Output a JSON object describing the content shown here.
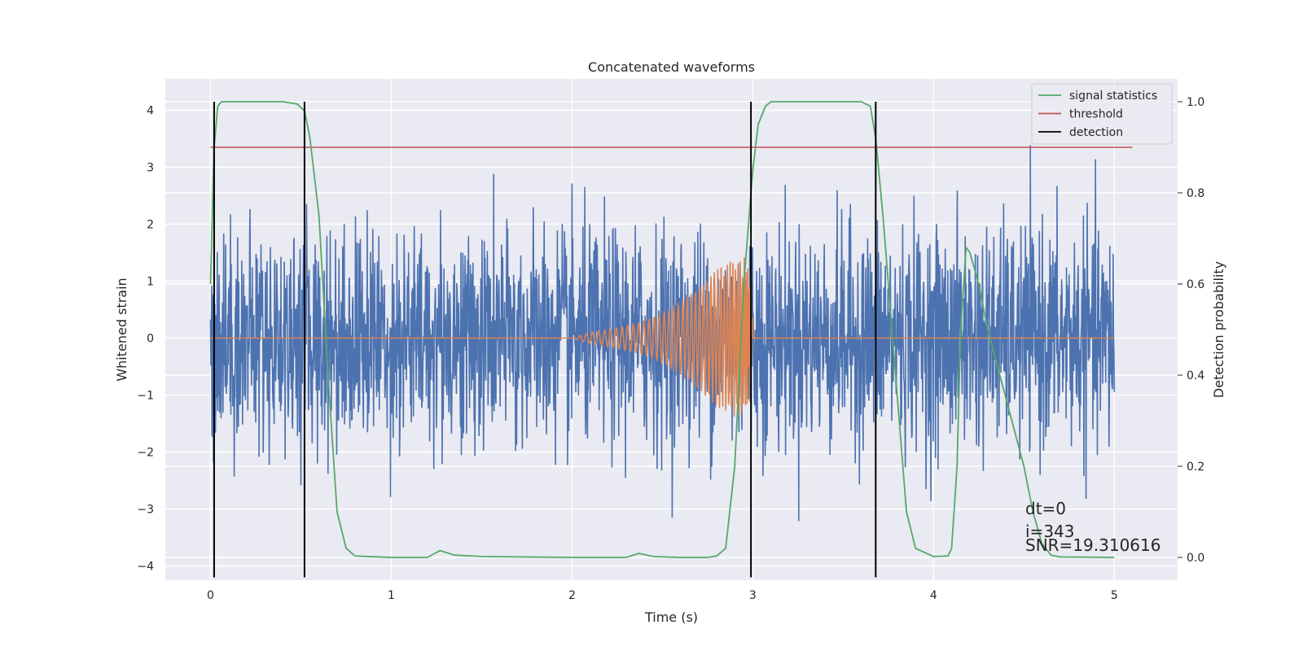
{
  "chart_data": {
    "type": "line",
    "title": "Concatenated waveforms",
    "xlabel": "Time (s)",
    "ylabel": "Whitened strain",
    "y2label": "Detection probability",
    "xlim": [
      -0.25,
      5.35
    ],
    "ylim": [
      -4.25,
      4.55
    ],
    "y2lim": [
      -0.05,
      1.05
    ],
    "xticks": [
      0,
      1,
      2,
      3,
      4,
      5
    ],
    "yticks": [
      -4,
      -3,
      -2,
      -1,
      0,
      1,
      2,
      3,
      4
    ],
    "y2ticks": [
      0.0,
      0.2,
      0.4,
      0.6,
      0.8,
      1.0
    ],
    "grid": true,
    "legend_position": "top-right",
    "legend": [
      "signal statistics",
      "threshold",
      "detection"
    ],
    "colors": {
      "strain": "#4c72b0",
      "injection": "#dd8452",
      "signal_statistics": "#55a868",
      "threshold": "#c44e52",
      "detection": "#000000",
      "background": "#eaeaf2",
      "grid": "#ffffff"
    },
    "series": [
      {
        "name": "strain",
        "axis": "left",
        "x_range": [
          0,
          5
        ],
        "description_stats": {
          "mean": 0,
          "std": 0.95,
          "min": -3.55,
          "max": 4.15
        }
      },
      {
        "name": "injection",
        "axis": "left",
        "x": [
          0.0,
          2.0,
          2.1,
          2.2,
          2.3,
          2.4,
          2.5,
          2.6,
          2.7,
          2.8,
          2.9,
          2.95,
          2.99,
          3.0,
          5.0
        ],
        "amplitude": [
          0.0,
          0.0,
          0.1,
          0.15,
          0.22,
          0.3,
          0.45,
          0.65,
          0.9,
          1.2,
          1.4,
          1.45,
          1.2,
          0.0,
          0.0
        ]
      },
      {
        "name": "signal statistics",
        "axis": "right",
        "x": [
          0.0,
          0.02,
          0.04,
          0.06,
          0.1,
          0.4,
          0.48,
          0.52,
          0.55,
          0.6,
          0.65,
          0.7,
          0.75,
          0.8,
          1.0,
          1.2,
          1.27,
          1.35,
          1.5,
          2.0,
          2.3,
          2.37,
          2.45,
          2.6,
          2.75,
          2.8,
          2.85,
          2.9,
          2.95,
          3.0,
          3.03,
          3.07,
          3.1,
          3.5,
          3.6,
          3.65,
          3.68,
          3.72,
          3.78,
          3.85,
          3.9,
          4.0,
          4.08,
          4.1,
          4.13,
          4.15,
          4.18,
          4.2,
          4.25,
          4.3,
          4.4,
          4.5,
          4.55,
          4.6,
          4.65,
          4.7,
          5.0
        ],
        "y": [
          0.6,
          0.9,
          0.99,
          1.0,
          1.0,
          1.0,
          0.995,
          0.98,
          0.92,
          0.75,
          0.4,
          0.1,
          0.02,
          0.003,
          0.0,
          0.0,
          0.015,
          0.005,
          0.002,
          0.0,
          0.0,
          0.009,
          0.002,
          0.0,
          0.0,
          0.003,
          0.02,
          0.2,
          0.6,
          0.85,
          0.95,
          0.99,
          1.0,
          1.0,
          1.0,
          0.99,
          0.92,
          0.75,
          0.45,
          0.1,
          0.02,
          0.002,
          0.003,
          0.02,
          0.2,
          0.5,
          0.68,
          0.67,
          0.6,
          0.5,
          0.35,
          0.2,
          0.1,
          0.03,
          0.005,
          0.001,
          0.0
        ]
      },
      {
        "name": "threshold",
        "axis": "right",
        "x": [
          0.0,
          5.1
        ],
        "y": [
          0.9,
          0.9
        ]
      }
    ],
    "detections": [
      0.02,
      0.52,
      2.99,
      3.68
    ],
    "detection_y_range": [
      -4.2,
      4.15
    ],
    "annotations": [
      "dt=0",
      "i=343",
      "SNR=19.310616"
    ]
  }
}
